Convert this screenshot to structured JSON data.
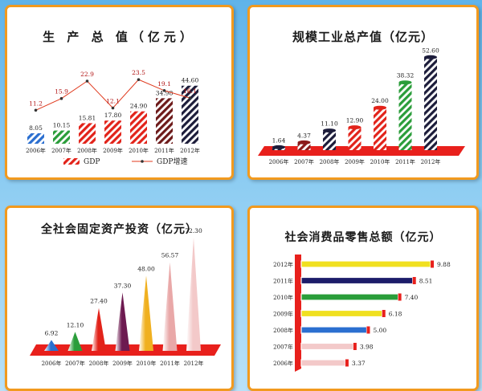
{
  "colors": {
    "panel_border": "#f29a1e",
    "platform_red": "#e8201c",
    "gdp_line": "#e03a1e",
    "background_top": "#5fb3ea",
    "background_bottom": "#b9e1f8"
  },
  "chart_data": [
    {
      "type": "bar",
      "title": "生 产 总 值（亿元）",
      "categories": [
        "2006年",
        "2007年",
        "2008年",
        "2009年",
        "2010年",
        "2011年",
        "2012年"
      ],
      "series": [
        {
          "name": "GDP",
          "type": "bar",
          "values": [
            8.05,
            10.15,
            15.81,
            17.8,
            24.9,
            34.98,
            44.6
          ],
          "labels": [
            "8.05",
            "10.15",
            "15.81",
            "17.80",
            "24.90",
            "34.98",
            "44.60"
          ]
        },
        {
          "name": "GDP增速",
          "type": "line",
          "values": [
            11.2,
            15.9,
            22.9,
            12.1,
            23.5,
            19.1,
            16.1
          ],
          "labels": [
            "11.2",
            "15.9",
            "22.9",
            "12.1",
            "23.5",
            "19.1",
            "16.1"
          ]
        }
      ],
      "bar_colors": [
        "#2b6fd0",
        "#2a9d3a",
        "#e2231a",
        "#e2231a",
        "#e2231a",
        "#6d1a1a",
        "#1c1c3a"
      ],
      "legend": {
        "position": "bottom",
        "items": [
          "GDP",
          "GDP增速"
        ]
      }
    },
    {
      "type": "bar",
      "title": "规模工业总产值（亿元）",
      "categories": [
        "2006年",
        "2007年",
        "2008年",
        "2009年",
        "2010年",
        "2011年",
        "2012年"
      ],
      "values": [
        1.64,
        4.37,
        11.1,
        12.9,
        24.0,
        38.32,
        52.6
      ],
      "labels": [
        "1.64",
        "4.37",
        "11.10",
        "12.90",
        "24.00",
        "38.32",
        "52.60"
      ],
      "bar_colors": [
        "#1c1c3a",
        "#8b1a1a",
        "#1c1c3a",
        "#e2231a",
        "#e2231a",
        "#2a9d3a",
        "#1c1c3a"
      ]
    },
    {
      "type": "bar",
      "title": "全社会固定资产投资（亿元）",
      "categories": [
        "2006年",
        "2007年",
        "2008年",
        "2009年",
        "2010年",
        "2011年",
        "2012年"
      ],
      "values": [
        6.92,
        12.1,
        27.4,
        37.3,
        48.0,
        56.57,
        72.3
      ],
      "labels": [
        "6.92",
        "12.10",
        "27.40",
        "37.30",
        "48.00",
        "56.57",
        "72.30"
      ],
      "bar_colors": [
        "#2a6fd0",
        "#2a9d3a",
        "#e2231a",
        "#6d1a50",
        "#f0b020",
        "#e9a8a8",
        "#f3c9c9"
      ]
    },
    {
      "type": "bar",
      "orientation": "horizontal",
      "title": "社会消费品零售总额（亿元）",
      "categories": [
        "2012年",
        "2011年",
        "2010年",
        "2009年",
        "2008年",
        "2007年",
        "2006年"
      ],
      "values": [
        9.88,
        8.51,
        7.4,
        6.18,
        5.0,
        3.98,
        3.37
      ],
      "labels": [
        "9.88",
        "8.51",
        "7.40",
        "6.18",
        "5.00",
        "3.98",
        "3.37"
      ],
      "bar_colors": [
        "#f0e020",
        "#1c1c6a",
        "#2a9d3a",
        "#f0e020",
        "#2b6fd0",
        "#f3c9c9",
        "#f3c9c9"
      ]
    }
  ]
}
